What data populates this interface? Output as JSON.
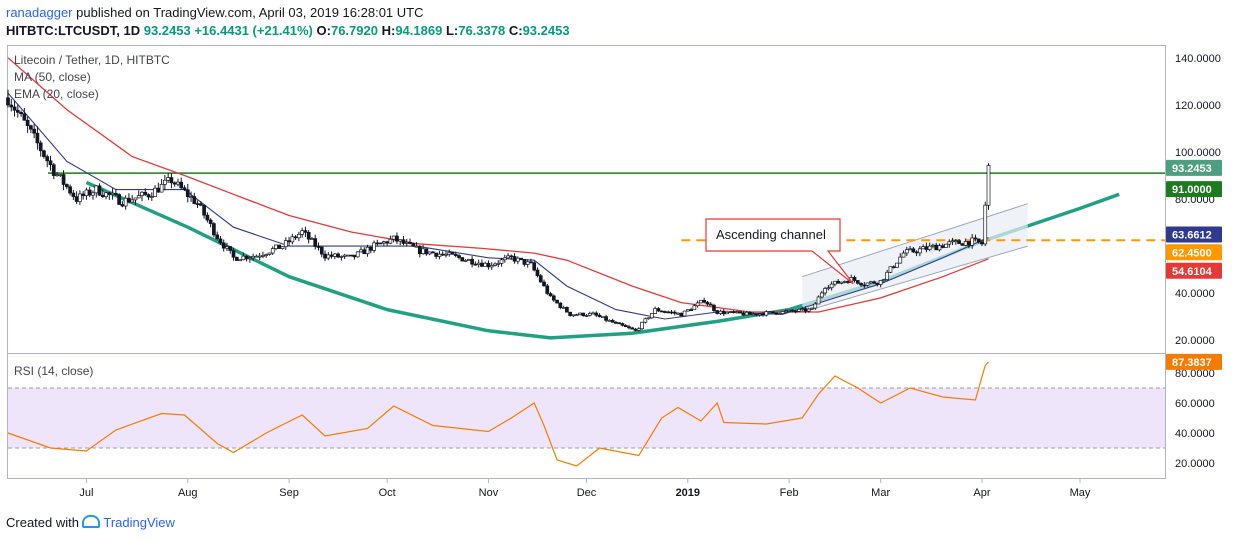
{
  "header": {
    "author": "ranadagger",
    "published_text": "published on TradingView.com, April 03, 2019 16:28:01 UTC",
    "symbol": "HITBTC:LTCUSDT, 1D",
    "price": "93.2453",
    "change": "+16.4431 (+21.41%)",
    "open_label": "O:",
    "open": "76.7920",
    "high_label": "H:",
    "high": "94.1869",
    "low_label": "L:",
    "low": "76.3378",
    "close_label": "C:",
    "close": "93.2453"
  },
  "legend": {
    "title": "Litecoin / Tether, 1D, HITBTC",
    "ma": "MA (50, close)",
    "ema": "EMA (20, close)",
    "rsi": "RSI (14, close)"
  },
  "footer": {
    "created_with": "Created with",
    "brand": "TradingView"
  },
  "colors": {
    "up": "#26a69a",
    "down": "#ef5350",
    "candle_outline": "#131722",
    "ma": "#e53935",
    "ema": "#2f3a8f",
    "cup": "#21a084",
    "resistance": "#1e7a1e",
    "support": "#ff9800",
    "rsi": "#f57c00",
    "rsi_band": "#efe5fb",
    "channel": "#9aa6b8"
  },
  "chart_data": [
    {
      "type": "candlestick",
      "title": "Litecoin / Tether, 1D, HITBTC",
      "ylim": [
        15,
        145
      ],
      "y_ticks": [
        "140.0000",
        "120.0000",
        "100.0000",
        "80.0000",
        "40.0000",
        "20.0000"
      ],
      "x_ticks": [
        "Jul",
        "Aug",
        "Sep",
        "Oct",
        "Nov",
        "Dec",
        "2019",
        "Feb",
        "Mar",
        "Apr",
        "May"
      ],
      "grid": false,
      "x_start": "2018-06-07",
      "x_end": "2019-05-27",
      "price_path": [
        [
          "2018-06-07",
          123
        ],
        [
          "2018-06-14",
          108
        ],
        [
          "2018-06-21",
          92
        ],
        [
          "2018-06-28",
          80
        ],
        [
          "2018-07-04",
          84
        ],
        [
          "2018-07-12",
          79
        ],
        [
          "2018-07-20",
          82
        ],
        [
          "2018-07-27",
          88
        ],
        [
          "2018-08-04",
          78
        ],
        [
          "2018-08-10",
          64
        ],
        [
          "2018-08-15",
          55
        ],
        [
          "2018-08-22",
          56
        ],
        [
          "2018-08-30",
          60
        ],
        [
          "2018-09-05",
          66
        ],
        [
          "2018-09-12",
          56
        ],
        [
          "2018-09-20",
          55
        ],
        [
          "2018-09-27",
          60
        ],
        [
          "2018-10-03",
          63
        ],
        [
          "2018-10-11",
          58
        ],
        [
          "2018-10-20",
          56
        ],
        [
          "2018-11-01",
          52
        ],
        [
          "2018-11-08",
          55
        ],
        [
          "2018-11-14",
          52
        ],
        [
          "2018-11-20",
          38
        ],
        [
          "2018-11-26",
          31
        ],
        [
          "2018-12-03",
          31
        ],
        [
          "2018-12-10",
          27
        ],
        [
          "2018-12-16",
          24
        ],
        [
          "2018-12-22",
          33
        ],
        [
          "2018-12-30",
          31
        ],
        [
          "2019-01-06",
          37
        ],
        [
          "2019-01-10",
          32
        ],
        [
          "2019-01-20",
          31
        ],
        [
          "2019-01-30",
          32
        ],
        [
          "2019-02-08",
          33
        ],
        [
          "2019-02-12",
          43
        ],
        [
          "2019-02-20",
          46
        ],
        [
          "2019-02-24",
          44
        ],
        [
          "2019-03-01",
          45
        ],
        [
          "2019-03-08",
          57
        ],
        [
          "2019-03-15",
          59
        ],
        [
          "2019-03-22",
          61
        ],
        [
          "2019-03-29",
          62
        ],
        [
          "2019-04-01",
          61
        ],
        [
          "2019-04-02",
          77
        ],
        [
          "2019-04-03",
          93.2
        ]
      ],
      "ma50_path": [
        [
          "2018-06-07",
          140
        ],
        [
          "2018-06-25",
          118
        ],
        [
          "2018-07-15",
          98
        ],
        [
          "2018-07-31",
          90
        ],
        [
          "2018-08-15",
          82
        ],
        [
          "2018-09-01",
          73
        ],
        [
          "2018-09-20",
          66
        ],
        [
          "2018-10-10",
          61
        ],
        [
          "2018-10-30",
          59
        ],
        [
          "2018-11-15",
          57
        ],
        [
          "2018-11-25",
          54
        ],
        [
          "2018-12-15",
          43
        ],
        [
          "2018-12-30",
          36
        ],
        [
          "2019-01-20",
          32
        ],
        [
          "2019-02-10",
          32
        ],
        [
          "2019-03-01",
          38
        ],
        [
          "2019-03-20",
          47
        ],
        [
          "2019-04-03",
          54.6
        ]
      ],
      "ema20_path": [
        [
          "2018-06-07",
          125
        ],
        [
          "2018-06-25",
          96
        ],
        [
          "2018-07-10",
          84
        ],
        [
          "2018-07-31",
          84
        ],
        [
          "2018-08-15",
          68
        ],
        [
          "2018-09-01",
          60
        ],
        [
          "2018-09-20",
          60
        ],
        [
          "2018-10-10",
          60
        ],
        [
          "2018-11-01",
          55
        ],
        [
          "2018-11-15",
          54
        ],
        [
          "2018-11-25",
          43
        ],
        [
          "2018-12-10",
          33
        ],
        [
          "2018-12-25",
          29
        ],
        [
          "2019-01-10",
          32
        ],
        [
          "2019-01-30",
          31
        ],
        [
          "2019-02-15",
          38
        ],
        [
          "2019-03-01",
          44
        ],
        [
          "2019-03-20",
          55
        ],
        [
          "2019-04-03",
          63.6
        ]
      ],
      "cup_path": [
        [
          "2018-07-01",
          87
        ],
        [
          "2018-08-01",
          68
        ],
        [
          "2018-09-01",
          47
        ],
        [
          "2018-10-01",
          33
        ],
        [
          "2018-11-01",
          24
        ],
        [
          "2018-11-20",
          21
        ],
        [
          "2018-12-15",
          23
        ],
        [
          "2019-01-10",
          28
        ],
        [
          "2019-02-01",
          33
        ],
        [
          "2019-03-01",
          45
        ],
        [
          "2019-04-01",
          62
        ],
        [
          "2019-05-01",
          76
        ],
        [
          "2019-05-13",
          82
        ]
      ],
      "channel_upper": [
        [
          "2019-02-05",
          47
        ],
        [
          "2019-04-15",
          78
        ]
      ],
      "channel_lower": [
        [
          "2019-02-05",
          32
        ],
        [
          "2019-04-15",
          60
        ]
      ],
      "annotation": {
        "text": "Ascending channel",
        "date": "2019-02-20",
        "y": 44
      },
      "levels": [
        {
          "name": "resistance",
          "label": "91.0000",
          "value": 91.0
        },
        {
          "name": "support",
          "label": "62.4500",
          "value": 62.45,
          "from": "2018-12-30"
        }
      ],
      "price_labels": [
        {
          "label": "93.2453",
          "value": 93.2453,
          "kind": "last"
        },
        {
          "label": "91.0000",
          "value": 91.0,
          "kind": "resistance"
        },
        {
          "label": "63.6612",
          "value": 63.6612,
          "kind": "ema"
        },
        {
          "label": "62.4500",
          "value": 62.45,
          "kind": "support"
        },
        {
          "label": "54.6104",
          "value": 54.6104,
          "kind": "ma"
        }
      ]
    },
    {
      "type": "line",
      "name": "RSI (14, close)",
      "ylim": [
        10,
        92
      ],
      "y_ticks": [
        "80.0000",
        "60.0000",
        "40.0000",
        "20.0000"
      ],
      "bands": [
        30,
        70
      ],
      "last": {
        "label": "87.3837",
        "value": 87.3837
      },
      "path": [
        [
          "2018-06-07",
          40
        ],
        [
          "2018-06-20",
          30
        ],
        [
          "2018-07-01",
          28
        ],
        [
          "2018-07-10",
          42
        ],
        [
          "2018-07-24",
          53
        ],
        [
          "2018-07-31",
          52
        ],
        [
          "2018-08-10",
          33
        ],
        [
          "2018-08-15",
          27
        ],
        [
          "2018-08-25",
          40
        ],
        [
          "2018-09-05",
          52
        ],
        [
          "2018-09-12",
          38
        ],
        [
          "2018-09-25",
          43
        ],
        [
          "2018-10-03",
          58
        ],
        [
          "2018-10-15",
          45
        ],
        [
          "2018-11-01",
          41
        ],
        [
          "2018-11-08",
          50
        ],
        [
          "2018-11-15",
          60
        ],
        [
          "2018-11-18",
          45
        ],
        [
          "2018-11-22",
          22
        ],
        [
          "2018-11-28",
          18
        ],
        [
          "2018-12-05",
          30
        ],
        [
          "2018-12-17",
          25
        ],
        [
          "2018-12-24",
          50
        ],
        [
          "2018-12-29",
          57
        ],
        [
          "2019-01-05",
          48
        ],
        [
          "2019-01-10",
          60
        ],
        [
          "2019-01-12",
          47
        ],
        [
          "2019-01-25",
          46
        ],
        [
          "2019-02-05",
          50
        ],
        [
          "2019-02-10",
          66
        ],
        [
          "2019-02-15",
          78
        ],
        [
          "2019-02-22",
          70
        ],
        [
          "2019-03-01",
          60
        ],
        [
          "2019-03-10",
          70
        ],
        [
          "2019-03-20",
          64
        ],
        [
          "2019-03-30",
          62
        ],
        [
          "2019-04-02",
          85
        ],
        [
          "2019-04-03",
          87.4
        ]
      ]
    }
  ]
}
